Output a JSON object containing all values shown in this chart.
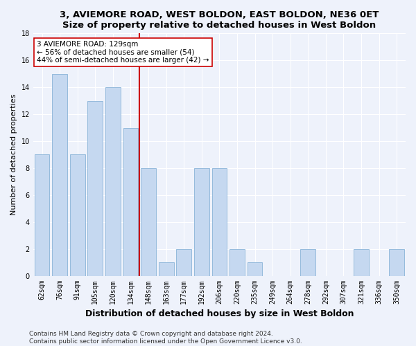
{
  "title1": "3, AVIEMORE ROAD, WEST BOLDON, EAST BOLDON, NE36 0ET",
  "title2": "Size of property relative to detached houses in West Boldon",
  "xlabel": "Distribution of detached houses by size in West Boldon",
  "ylabel": "Number of detached properties",
  "categories": [
    "62sqm",
    "76sqm",
    "91sqm",
    "105sqm",
    "120sqm",
    "134sqm",
    "148sqm",
    "163sqm",
    "177sqm",
    "192sqm",
    "206sqm",
    "220sqm",
    "235sqm",
    "249sqm",
    "264sqm",
    "278sqm",
    "292sqm",
    "307sqm",
    "321sqm",
    "336sqm",
    "350sqm"
  ],
  "values": [
    9,
    15,
    9,
    13,
    14,
    11,
    8,
    1,
    2,
    8,
    8,
    2,
    1,
    0,
    0,
    2,
    0,
    0,
    2,
    0,
    2
  ],
  "bar_color": "#c5d8f0",
  "bar_edge_color": "#8ab4d8",
  "vline_x_idx": 5,
  "vline_color": "#cc0000",
  "annotation_line1": "3 AVIEMORE ROAD: 129sqm",
  "annotation_line2": "← 56% of detached houses are smaller (54)",
  "annotation_line3": "44% of semi-detached houses are larger (42) →",
  "annotation_box_color": "#ffffff",
  "annotation_box_edge": "#cc0000",
  "ylim": [
    0,
    18
  ],
  "yticks": [
    0,
    2,
    4,
    6,
    8,
    10,
    12,
    14,
    16,
    18
  ],
  "footnote": "Contains HM Land Registry data © Crown copyright and database right 2024.\nContains public sector information licensed under the Open Government Licence v3.0.",
  "title1_fontsize": 9.5,
  "title2_fontsize": 9,
  "xlabel_fontsize": 9,
  "ylabel_fontsize": 8,
  "tick_fontsize": 7,
  "annotation_fontsize": 7.5,
  "footnote_fontsize": 6.5,
  "background_color": "#eef2fb",
  "plot_background": "#eef2fb",
  "grid_color": "#ffffff"
}
